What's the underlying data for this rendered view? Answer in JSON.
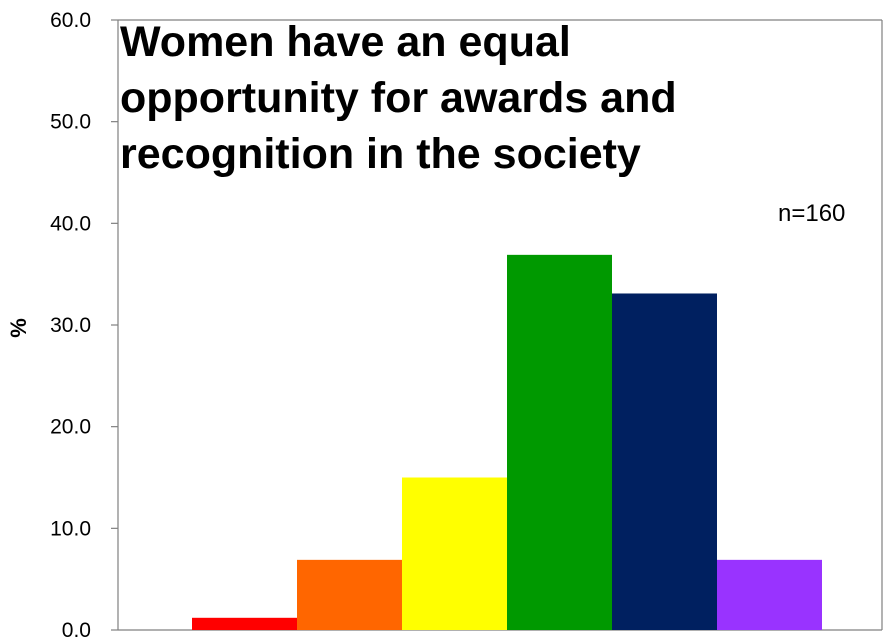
{
  "chart_data": {
    "type": "bar",
    "title_lines": [
      " Women have an equal",
      "opportunity for awards and",
      "recognition in the society"
    ],
    "annotation": "n=160",
    "ylabel": "%",
    "xlabel": "",
    "ylim": [
      0,
      60
    ],
    "yticks": [
      "0.0",
      "10.0",
      "20.0",
      "30.0",
      "40.0",
      "50.0",
      "60.0"
    ],
    "legend": "none",
    "grid": false,
    "bars": [
      {
        "value": 1.2,
        "color": "#ff0000"
      },
      {
        "value": 6.9,
        "color": "#ff6600"
      },
      {
        "value": 15.0,
        "color": "#ffff00"
      },
      {
        "value": 36.9,
        "color": "#009900"
      },
      {
        "value": 33.1,
        "color": "#002060"
      },
      {
        "value": 6.9,
        "color": "#9933ff"
      }
    ]
  }
}
